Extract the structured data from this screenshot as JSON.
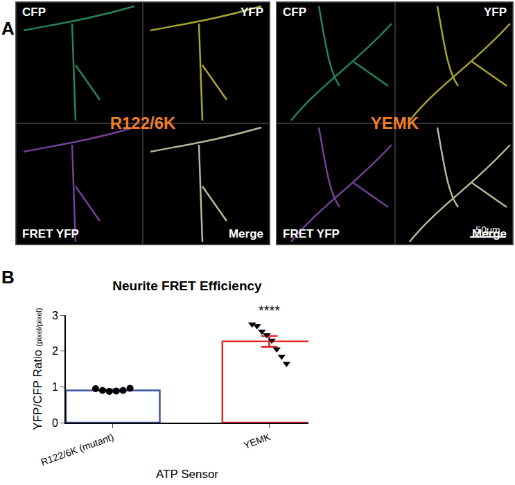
{
  "chart_data": {
    "type": "bar",
    "panel": "B",
    "title": "Neurite FRET Efficiency",
    "y_label": "YFP/CFP Ratio",
    "y_label_unit": "(pixel/pixel)",
    "x_label": "ATP Sensor",
    "categories": [
      "R122/6K (mutant)",
      "YEMK"
    ],
    "values": [
      0.9,
      2.27
    ],
    "error": [
      0.03,
      0.15
    ],
    "colors": [
      "#3a53a4",
      "#e8262a"
    ],
    "points": [
      {
        "marker": "circle",
        "values": [
          0.95,
          0.9,
          0.87,
          0.88,
          0.9,
          0.96
        ]
      },
      {
        "marker": "triangle-down",
        "values": [
          2.75,
          2.7,
          2.55,
          2.45,
          2.3,
          2.05,
          1.85,
          1.65
        ]
      }
    ],
    "annotations": [
      {
        "text": "****",
        "category": "YEMK",
        "y": 2.88
      }
    ],
    "ylim": [
      0,
      3
    ],
    "yticks": [
      0,
      1,
      2,
      3
    ],
    "grid": false
  },
  "panel_a": {
    "label": "A",
    "images": [
      {
        "title": "R122/6K",
        "channels": [
          "CFP",
          "YFP",
          "FRET YFP",
          "Merge"
        ]
      },
      {
        "title": "YEMK",
        "channels": [
          "CFP",
          "YFP",
          "FRET YFP",
          "Merge"
        ],
        "scale_bar": "50μm"
      }
    ]
  }
}
